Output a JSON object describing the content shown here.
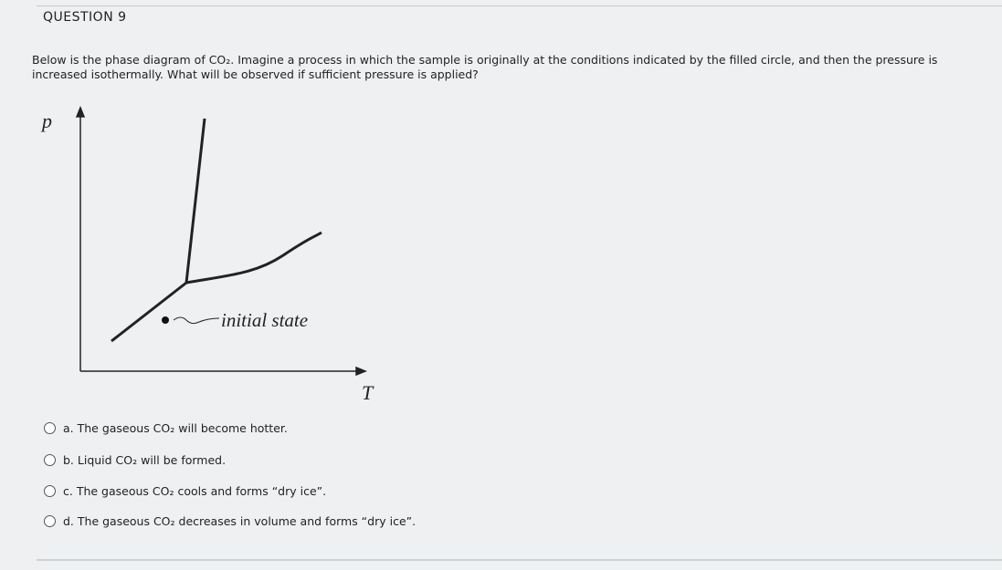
{
  "header": {
    "title": "QUESTION 9"
  },
  "question": {
    "text": "Below is the phase diagram of CO₂. Imagine a process in which the sample is originally at the conditions indicated by the filled circle, and then the pressure is increased isothermally. What will be observed if sufficient pressure is applied?"
  },
  "diagram": {
    "y_label": "p",
    "x_label": "T",
    "point_label": "initial state"
  },
  "options": [
    "a. The gaseous CO₂ will become hotter.",
    "b. Liquid CO₂ will be formed.",
    "c. The gaseous CO₂ cools and forms “dry ice”.",
    "d. The gaseous CO₂ decreases in volume and forms “dry ice”."
  ]
}
